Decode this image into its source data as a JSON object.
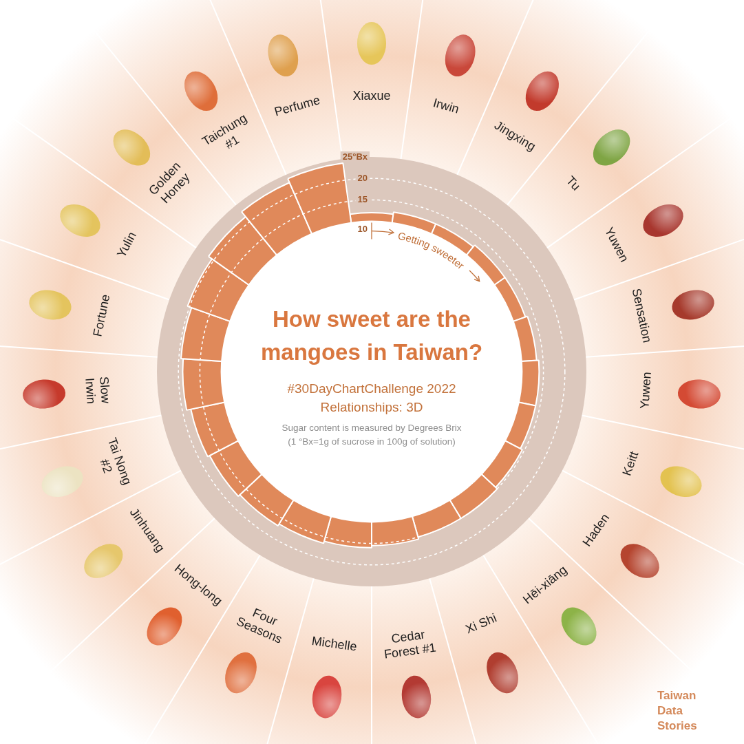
{
  "chart_data": {
    "type": "polarArea",
    "title": "How sweet are the mangoes in Taiwan?",
    "subtitle": [
      "#30DayChartChallenge 2022",
      "Relationships: 3D"
    ],
    "note": [
      "Sugar content is measured by Degrees Brix",
      "(1 °Bx=1g of sucrose in 100g of solution)"
    ],
    "annotation": "Getting sweeter",
    "source": "Taiwan Data Stories",
    "categories": [
      "Xiaxue",
      "Irwin",
      "Jingxing",
      "Tu",
      "Yuwen",
      "Sensation",
      "Yuwen",
      "Keitt",
      "Haden",
      "Hēi-xiāng",
      "Xi Shi",
      "Cedar Forest #1",
      "Michelle",
      "Four Seasons",
      "Hong-long",
      "Jinhuang",
      "Tai Nong #2",
      "Slow Irwin",
      "Fortune",
      "Yulin",
      "Golden Honey",
      "Taichung #1",
      "Perfume"
    ],
    "values": [
      12,
      12.5,
      12.5,
      13,
      13,
      13.5,
      14,
      14,
      14.5,
      15,
      15,
      15.5,
      16,
      16.5,
      17,
      17.5,
      18,
      19,
      19.5,
      20.5,
      21.5,
      23,
      24
    ],
    "color": "#E0895A",
    "ylim": [
      10,
      25
    ],
    "yticks": [
      10,
      15,
      20,
      {
        "value": 25,
        "label": "25°Bx"
      }
    ],
    "grid": true
  }
}
